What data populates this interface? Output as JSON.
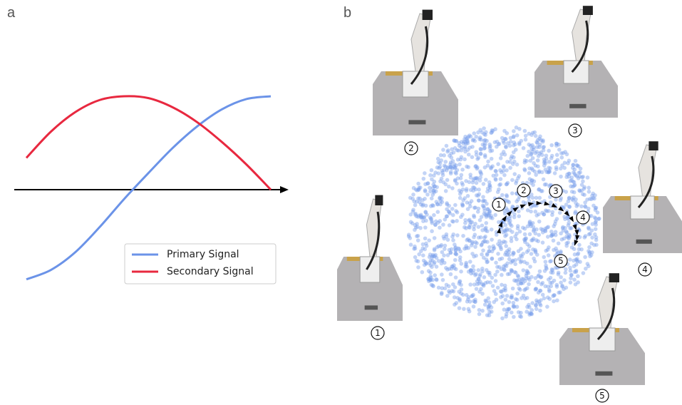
{
  "panel_labels": [
    "a",
    "b"
  ],
  "chart_data": {
    "type": "line",
    "x": [
      0,
      0.1,
      0.2,
      0.3,
      0.4,
      0.5,
      0.6,
      0.7,
      0.8,
      0.9,
      1.0
    ],
    "series": [
      {
        "name": "Primary Signal",
        "color": "#6b93e8",
        "values": [
          -0.96,
          -0.86,
          -0.67,
          -0.4,
          -0.1,
          0.18,
          0.45,
          0.68,
          0.86,
          0.97,
          1.0
        ]
      },
      {
        "name": "Secondary Signal",
        "color": "#e8283f",
        "values": [
          0.34,
          0.62,
          0.83,
          0.96,
          1.0,
          0.98,
          0.88,
          0.72,
          0.51,
          0.27,
          0.0
        ]
      }
    ]
  },
  "embedding": {
    "trajectory_labels": [
      "1",
      "2",
      "3",
      "4",
      "5"
    ],
    "snapshot_labels": [
      "1",
      "2",
      "3",
      "4",
      "5"
    ]
  }
}
